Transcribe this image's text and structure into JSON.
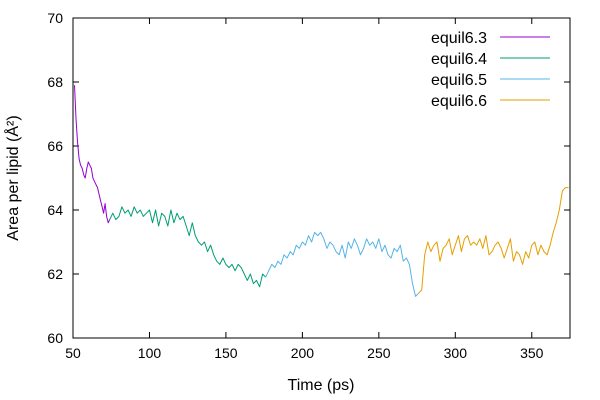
{
  "chart_data": {
    "type": "line",
    "title": "",
    "xlabel": "Time (ps)",
    "ylabel": "Area per lipid (Å²)",
    "xlim": [
      50,
      375
    ],
    "ylim": [
      60,
      70
    ],
    "xticks": [
      50,
      100,
      150,
      200,
      250,
      300,
      350
    ],
    "yticks": [
      60,
      62,
      64,
      66,
      68,
      70
    ],
    "grid": false,
    "legend_position": "top-right",
    "series": [
      {
        "name": "equil6.3",
        "color": "#9400d3",
        "x": [
          51,
          52,
          53,
          54,
          55,
          56,
          57,
          58,
          59,
          60,
          61,
          62,
          63,
          64,
          65,
          66,
          67,
          68,
          69,
          70,
          71,
          72,
          73,
          74
        ],
        "y": [
          67.9,
          66.8,
          66.1,
          65.6,
          65.4,
          65.3,
          65.1,
          65.0,
          65.3,
          65.5,
          65.4,
          65.3,
          65.0,
          64.9,
          64.8,
          64.7,
          64.5,
          64.3,
          64.1,
          63.9,
          64.2,
          63.8,
          63.6,
          63.7
        ]
      },
      {
        "name": "equil6.4",
        "color": "#009e73",
        "x": [
          74,
          76,
          78,
          80,
          82,
          84,
          86,
          88,
          90,
          92,
          94,
          96,
          98,
          100,
          102,
          104,
          106,
          108,
          110,
          112,
          114,
          116,
          118,
          120,
          122,
          124,
          126,
          128,
          130,
          132,
          134,
          136,
          138,
          140,
          142,
          144,
          146,
          148,
          150,
          152,
          154,
          156,
          158,
          160,
          162,
          164,
          166,
          168,
          170,
          172,
          174,
          176
        ],
        "y": [
          63.7,
          63.9,
          63.7,
          63.8,
          64.1,
          63.9,
          64.0,
          63.8,
          64.1,
          63.9,
          64.0,
          63.8,
          63.9,
          64.0,
          63.6,
          64.0,
          63.5,
          63.9,
          63.8,
          63.5,
          64.0,
          63.6,
          63.9,
          63.7,
          63.8,
          63.5,
          63.2,
          63.6,
          63.2,
          63.0,
          62.9,
          63.0,
          62.7,
          62.9,
          62.6,
          62.4,
          62.3,
          62.5,
          62.3,
          62.2,
          62.3,
          62.1,
          62.3,
          62.2,
          62.0,
          61.8,
          62.0,
          61.7,
          61.8,
          61.6,
          62.0,
          61.9
        ]
      },
      {
        "name": "equil6.5",
        "color": "#56b4e9",
        "x": [
          176,
          178,
          180,
          182,
          184,
          186,
          188,
          190,
          192,
          194,
          196,
          198,
          200,
          202,
          204,
          206,
          208,
          210,
          212,
          214,
          216,
          218,
          220,
          222,
          224,
          226,
          228,
          230,
          232,
          234,
          236,
          238,
          240,
          242,
          244,
          246,
          248,
          250,
          252,
          254,
          256,
          258,
          260,
          262,
          264,
          266,
          268,
          270,
          272,
          274,
          276
        ],
        "y": [
          61.9,
          62.1,
          62.3,
          62.2,
          62.4,
          62.3,
          62.6,
          62.5,
          62.7,
          62.6,
          62.9,
          62.8,
          63.0,
          62.9,
          63.2,
          63.0,
          63.3,
          63.2,
          63.3,
          63.1,
          62.8,
          63.0,
          62.9,
          62.7,
          62.6,
          62.9,
          62.5,
          63.0,
          62.8,
          63.1,
          62.9,
          62.6,
          62.8,
          63.1,
          62.9,
          63.0,
          62.8,
          63.1,
          62.7,
          62.9,
          62.6,
          62.5,
          62.8,
          62.7,
          62.9,
          62.4,
          62.5,
          62.3,
          61.7,
          61.3,
          61.4
        ]
      },
      {
        "name": "equil6.6",
        "color": "#e69f00",
        "x": [
          276,
          278,
          280,
          282,
          284,
          286,
          288,
          290,
          292,
          294,
          296,
          298,
          300,
          302,
          304,
          306,
          308,
          310,
          312,
          314,
          316,
          318,
          320,
          322,
          324,
          326,
          328,
          330,
          332,
          334,
          336,
          338,
          340,
          342,
          344,
          346,
          348,
          350,
          352,
          354,
          356,
          358,
          360,
          362,
          364,
          366,
          368,
          370,
          372,
          374
        ],
        "y": [
          61.4,
          61.5,
          62.6,
          63.0,
          62.7,
          62.9,
          63.0,
          62.4,
          62.8,
          62.9,
          63.1,
          62.6,
          62.9,
          63.2,
          62.7,
          63.1,
          63.2,
          62.9,
          63.0,
          62.9,
          63.1,
          62.8,
          63.2,
          62.6,
          62.7,
          62.9,
          63.0,
          62.8,
          62.5,
          62.8,
          63.1,
          62.4,
          62.7,
          62.6,
          62.3,
          62.7,
          62.5,
          62.9,
          63.0,
          62.6,
          62.9,
          62.7,
          62.6,
          62.9,
          63.3,
          63.6,
          64.0,
          64.6,
          64.7,
          64.7
        ]
      }
    ]
  }
}
